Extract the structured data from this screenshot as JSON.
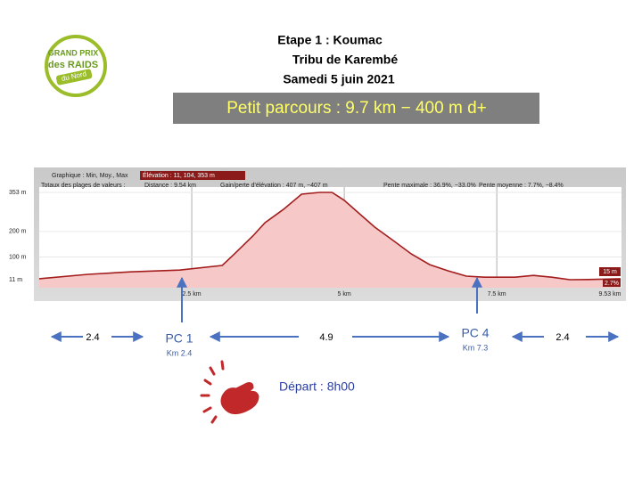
{
  "header": {
    "lines": [
      "Etape 1 : Koumac",
      "Tribu de Karembé",
      "Samedi 5 juin 2021"
    ],
    "banner": "Petit parcours : 9.7 km − 400 m d+",
    "logo": [
      "GRAND PRIX",
      "des RAIDS",
      "du Nord"
    ]
  },
  "chart_data": {
    "type": "area",
    "color": "#a31d1d",
    "info": [
      "Graphique : Min, Moy., Max",
      "Élévation : 11, 104, 353 m",
      "Totaux des plages de valeurs :",
      "Distance : 9.54 km",
      "Gain/perte d'élévation : 407 m, −407 m",
      "Pente maximale : 36.9%, −33.0%",
      "Pente moyenne : 7.7%, −8.4%"
    ],
    "end_labels": [
      "15 m",
      "2.7%"
    ],
    "x": [
      0,
      0.8,
      1.5,
      2.3,
      3.0,
      3.2,
      3.5,
      3.7,
      4.0,
      4.3,
      4.6,
      4.8,
      5.0,
      5.2,
      5.5,
      5.8,
      6.1,
      6.4,
      6.7,
      7.0,
      7.3,
      7.8,
      8.1,
      8.4,
      8.7,
      9.0,
      9.53
    ],
    "values": [
      15,
      32,
      42,
      49,
      67,
      112,
      182,
      234,
      286,
      346,
      353,
      353,
      322,
      280,
      217,
      165,
      112,
      70,
      46,
      25,
      21,
      21,
      28,
      21,
      11,
      12,
      15
    ],
    "xlim": [
      0,
      9.53
    ],
    "ylim": [
      0,
      380
    ],
    "xticks": [
      {
        "value": 2.5,
        "label": "2.5 km"
      },
      {
        "value": 5,
        "label": "5 km"
      },
      {
        "value": 7.5,
        "label": "7.5 km"
      },
      {
        "value": 9.53,
        "label": "9.53 km"
      }
    ],
    "yticks": [
      {
        "value": 353,
        "label": "353 m"
      },
      {
        "value": 200,
        "label": "200 m"
      },
      {
        "value": 100,
        "label": "100 m"
      },
      {
        "value": 11,
        "label": "11 m"
      }
    ],
    "grid": true
  },
  "annotations": {
    "segments": [
      2.4,
      4.9,
      2.4
    ],
    "checkpoints": [
      {
        "name": "PC 1",
        "km": "Km 2.4"
      },
      {
        "name": "PC 4",
        "km": "Km 7.3"
      }
    ],
    "start": "Départ : 8h00"
  }
}
